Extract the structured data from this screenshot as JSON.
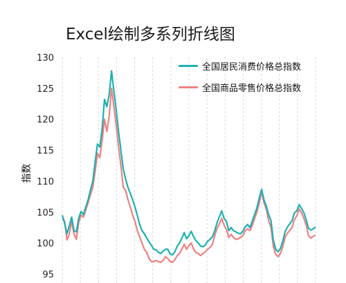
{
  "chart_data": {
    "type": "line",
    "title": "Excel绘制多系列折线图",
    "ylabel": "指数",
    "xlabel": "",
    "ylim": [
      95,
      130
    ],
    "yticks": [
      95,
      100,
      105,
      110,
      115,
      120,
      125,
      130
    ],
    "grid": "vertical-dashed",
    "legend_position": "top-right",
    "series": [
      {
        "name": "全国居民消费价格总指数",
        "color": "#1bb0b3",
        "values": [
          104.5,
          103.2,
          101.5,
          102.8,
          104.2,
          102.0,
          101.8,
          104.0,
          105.1,
          104.6,
          105.8,
          107.0,
          108.5,
          110.0,
          113.0,
          116.0,
          115.5,
          118.5,
          123.2,
          122.0,
          124.0,
          127.8,
          124.5,
          121.5,
          118.0,
          115.0,
          112.0,
          110.3,
          109.0,
          108.0,
          107.0,
          105.8,
          104.5,
          103.0,
          102.0,
          101.5,
          100.8,
          100.2,
          99.6,
          99.0,
          98.9,
          98.5,
          98.3,
          98.7,
          99.0,
          99.0,
          98.2,
          98.1,
          98.6,
          99.5,
          100.0,
          100.8,
          101.7,
          100.7,
          101.2,
          101.9,
          101.0,
          100.4,
          100.0,
          99.5,
          99.4,
          99.7,
          100.3,
          100.6,
          101.0,
          102.0,
          103.3,
          104.3,
          105.2,
          104.0,
          103.5,
          102.0,
          102.5,
          102.0,
          101.8,
          101.6,
          101.5,
          101.9,
          102.6,
          103.0,
          102.5,
          103.5,
          104.6,
          105.7,
          107.3,
          108.7,
          107.0,
          106.0,
          104.6,
          103.6,
          100.5,
          99.0,
          98.6,
          99.1,
          100.3,
          101.8,
          102.6,
          103.1,
          103.6,
          104.9,
          105.2,
          106.2,
          105.6,
          104.9,
          103.8,
          102.4,
          102.1,
          102.3,
          102.6
        ]
      },
      {
        "name": "全国商品零售价格总指数",
        "color": "#f08080",
        "values": [
          104.0,
          103.5,
          100.5,
          101.5,
          103.5,
          101.5,
          100.6,
          103.3,
          104.5,
          104.2,
          105.3,
          106.5,
          107.8,
          109.0,
          111.5,
          114.5,
          113.8,
          116.5,
          120.0,
          118.0,
          120.5,
          125.0,
          122.0,
          119.0,
          115.5,
          112.5,
          109.0,
          108.5,
          107.0,
          105.8,
          104.5,
          103.5,
          102.0,
          101.0,
          100.0,
          99.0,
          98.5,
          97.5,
          97.0,
          97.0,
          97.2,
          97.0,
          96.9,
          97.2,
          97.8,
          97.5,
          97.0,
          96.9,
          97.3,
          98.0,
          98.3,
          99.0,
          99.8,
          99.0,
          99.6,
          100.0,
          99.0,
          98.5,
          98.3,
          98.0,
          98.3,
          98.6,
          99.0,
          99.3,
          99.8,
          101.2,
          102.4,
          103.1,
          104.0,
          102.9,
          102.2,
          100.9,
          101.4,
          100.9,
          100.6,
          100.7,
          100.9,
          101.2,
          102.0,
          102.3,
          102.0,
          102.8,
          104.0,
          105.0,
          106.5,
          108.3,
          106.5,
          105.5,
          103.6,
          102.5,
          99.5,
          98.2,
          97.8,
          98.3,
          99.4,
          100.9,
          101.6,
          102.0,
          102.6,
          103.8,
          104.4,
          105.5,
          104.9,
          104.0,
          102.9,
          101.2,
          100.8,
          101.1,
          101.3
        ]
      }
    ]
  }
}
